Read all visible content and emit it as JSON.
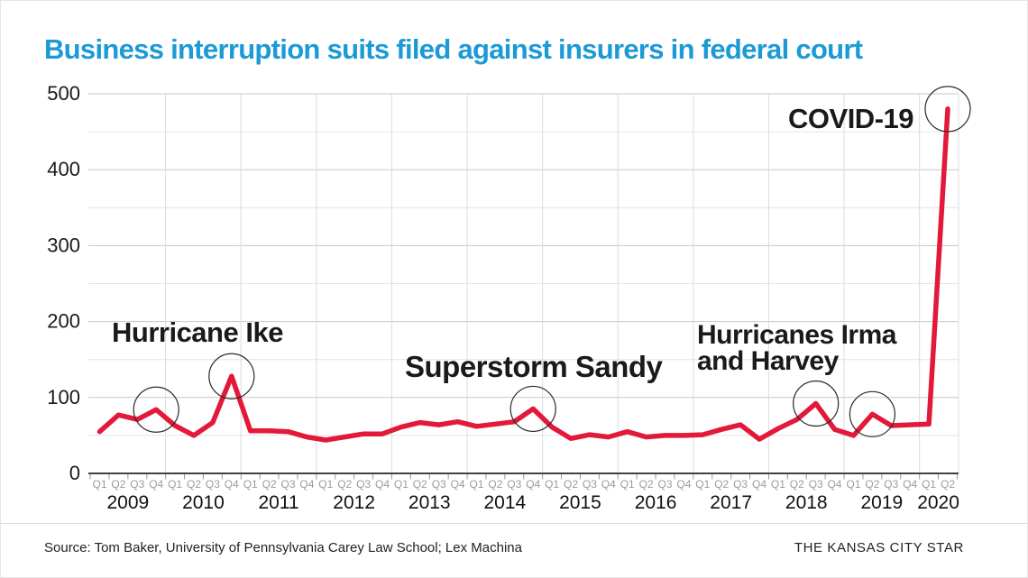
{
  "page": {
    "title": "Business interruption suits filed against insurers in federal court",
    "title_color": "#1b9ad6",
    "source": "Source: Tom Baker, University of Pennsylvania Carey Law School; Lex Machina",
    "credit": "THE KANSAS CITY STAR"
  },
  "chart_data": {
    "type": "line",
    "title": "Business interruption suits filed against insurers in federal court",
    "xlabel": "",
    "ylabel": "",
    "ylim": [
      0,
      500
    ],
    "y_major_ticks": [
      0,
      100,
      200,
      300,
      400,
      500
    ],
    "y_minor_ticks": [
      50,
      150,
      250,
      350,
      450
    ],
    "grid": "horizontal major+minor, vertical lines at year boundaries",
    "legend": "none",
    "line_color": "#e3193a",
    "grid_major_color": "#c7c7c7",
    "grid_minor_color": "#e4e4e4",
    "grid_vertical_color": "#dcdcdc",
    "axis_color": "#414141",
    "quarter_label_color": "#9b9b9b",
    "quarter_labels": [
      "Q1",
      "Q2",
      "Q3",
      "Q4"
    ],
    "years": [
      {
        "label": "2009",
        "quarters": 4
      },
      {
        "label": "2010",
        "quarters": 4
      },
      {
        "label": "2011",
        "quarters": 4
      },
      {
        "label": "2012",
        "quarters": 4
      },
      {
        "label": "2013",
        "quarters": 4
      },
      {
        "label": "2014",
        "quarters": 4
      },
      {
        "label": "2015",
        "quarters": 4
      },
      {
        "label": "2016",
        "quarters": 4
      },
      {
        "label": "2017",
        "quarters": 4
      },
      {
        "label": "2018",
        "quarters": 4
      },
      {
        "label": "2019",
        "quarters": 4
      },
      {
        "label": "2020",
        "quarters": 2
      }
    ],
    "categories": [
      "2009 Q1",
      "2009 Q2",
      "2009 Q3",
      "2009 Q4",
      "2010 Q1",
      "2010 Q2",
      "2010 Q3",
      "2010 Q4",
      "2011 Q1",
      "2011 Q2",
      "2011 Q3",
      "2011 Q4",
      "2012 Q1",
      "2012 Q2",
      "2012 Q3",
      "2012 Q4",
      "2013 Q1",
      "2013 Q2",
      "2013 Q3",
      "2013 Q4",
      "2014 Q1",
      "2014 Q2",
      "2014 Q3",
      "2014 Q4",
      "2015 Q1",
      "2015 Q2",
      "2015 Q3",
      "2015 Q4",
      "2016 Q1",
      "2016 Q2",
      "2016 Q3",
      "2016 Q4",
      "2017 Q1",
      "2017 Q2",
      "2017 Q3",
      "2017 Q4",
      "2018 Q1",
      "2018 Q2",
      "2018 Q3",
      "2018 Q4",
      "2019 Q1",
      "2019 Q2",
      "2019 Q3",
      "2019 Q4",
      "2020 Q1",
      "2020 Q2"
    ],
    "values": [
      55,
      77,
      71,
      84,
      63,
      50,
      67,
      128,
      56,
      56,
      55,
      48,
      44,
      48,
      52,
      52,
      61,
      67,
      64,
      68,
      62,
      65,
      68,
      85,
      61,
      46,
      51,
      48,
      55,
      48,
      50,
      50,
      51,
      58,
      64,
      45,
      59,
      71,
      92,
      58,
      50,
      78,
      63,
      64,
      65,
      480
    ],
    "annotations": [
      {
        "id": "ike",
        "lines": [
          "Hurricane Ike"
        ],
        "circled_categories": [
          "2009 Q4",
          "2010 Q4"
        ],
        "circled_indices": [
          3,
          7
        ]
      },
      {
        "id": "sandy",
        "lines": [
          "Superstorm Sandy"
        ],
        "circled_categories": [
          "2014 Q4"
        ],
        "circled_indices": [
          23
        ]
      },
      {
        "id": "irma-harvey",
        "lines": [
          "Hurricanes Irma",
          "and Harvey"
        ],
        "circled_categories": [
          "2018 Q3",
          "2019 Q2"
        ],
        "circled_indices": [
          38,
          41
        ]
      },
      {
        "id": "covid",
        "lines": [
          "COVID-19"
        ],
        "circled_categories": [
          "2020 Q2"
        ],
        "circled_indices": [
          45
        ]
      }
    ]
  }
}
